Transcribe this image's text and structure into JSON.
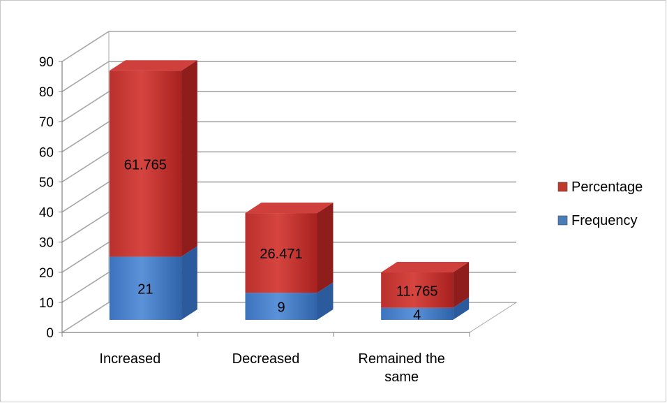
{
  "chart_data": {
    "type": "bar",
    "stacked": true,
    "three_d": true,
    "categories": [
      "Increased",
      "Decreased",
      "Remained the same"
    ],
    "series": [
      {
        "name": "Frequency",
        "values": [
          21,
          9,
          4
        ],
        "color": "#4a7ebb"
      },
      {
        "name": "Percentage",
        "values": [
          61.765,
          26.471,
          11.765
        ],
        "color": "#c0392b"
      }
    ],
    "ylim": [
      0,
      90
    ],
    "yticks": [
      0,
      10,
      20,
      30,
      40,
      50,
      60,
      70,
      80,
      90
    ],
    "grid": true,
    "legend_position": "right",
    "title": "",
    "xlabel": "",
    "ylabel": ""
  }
}
